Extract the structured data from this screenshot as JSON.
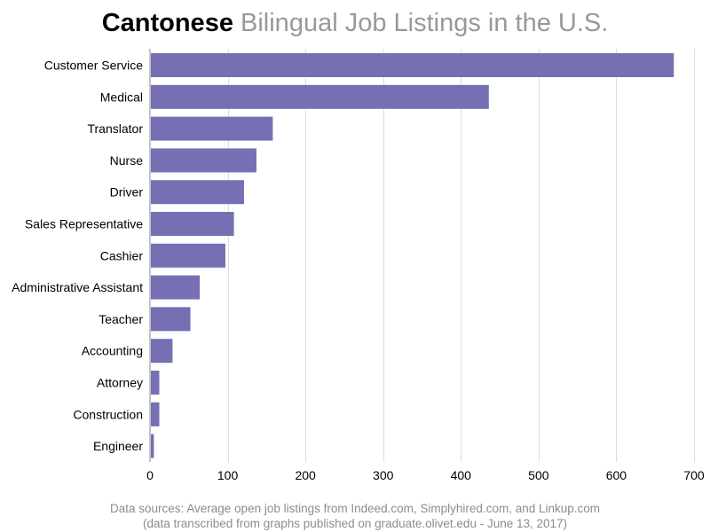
{
  "title": {
    "strong": "Cantonese",
    "light": "Bilingual Job Listings in the U.S."
  },
  "footnote": {
    "line1": "Data sources: Average open job listings from Indeed.com, Simplyhired.com, and Linkup.com",
    "line2": "(data transcribed from graphs published on graduate.olivet.edu - June 13, 2017)"
  },
  "chart_data": {
    "type": "bar",
    "orientation": "horizontal",
    "categories": [
      "Customer Service",
      "Medical",
      "Translator",
      "Nurse",
      "Driver",
      "Sales Representative",
      "Cashier",
      "Administrative Assistant",
      "Teacher",
      "Accounting",
      "Attorney",
      "Construction",
      "Engineer"
    ],
    "values": [
      674,
      436,
      158,
      137,
      121,
      108,
      97,
      64,
      52,
      29,
      12,
      12,
      5
    ],
    "xlim": [
      0,
      700
    ],
    "xticks": [
      0,
      100,
      200,
      300,
      400,
      500,
      600,
      700
    ],
    "xlabel": "",
    "ylabel": "",
    "grid": "vertical",
    "bar_color": "#7570b3",
    "grid_color": "#dddddd"
  }
}
